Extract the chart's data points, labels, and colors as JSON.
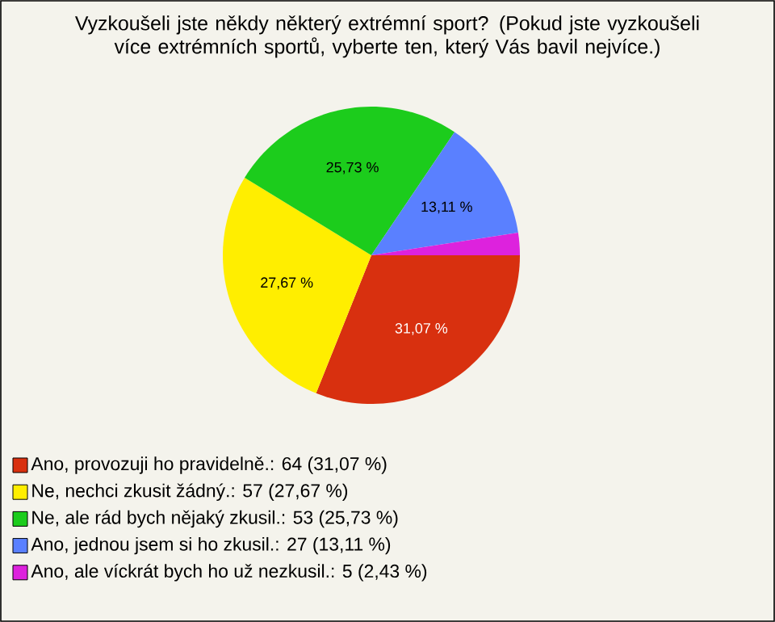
{
  "chart_data": {
    "type": "pie",
    "title": "Vyzkoušeli jste někdy některý extrémní sport? (Pokud jste vyzkoušeli více extrémních sportů, vyberte ten, který Vás bavil nejvíce.)",
    "categories": [
      "Ano, provozuji ho pravidelně.: 64 (31,07 %)",
      "Ne, nechci zkusit žádný.: 57 (27,67 %)",
      "Ne, ale rád bych nějaký zkusil.: 53 (25,73 %)",
      "Ano, jednou jsem si ho zkusil.: 27 (13,11 %)",
      "Ano, ale víckrát bych ho už nezkusil.: 5 (2,43 %)"
    ],
    "values": [
      31.07,
      27.67,
      25.73,
      13.11,
      2.43
    ],
    "colors": [
      "#d8300f",
      "#ffee00",
      "#1ccc1c",
      "#5a80ff",
      "#dd22dd"
    ],
    "value_labels": [
      "31,07 %",
      "27,67 %",
      "25,73 %",
      "13,11 %",
      null
    ],
    "legend": "bottom"
  }
}
